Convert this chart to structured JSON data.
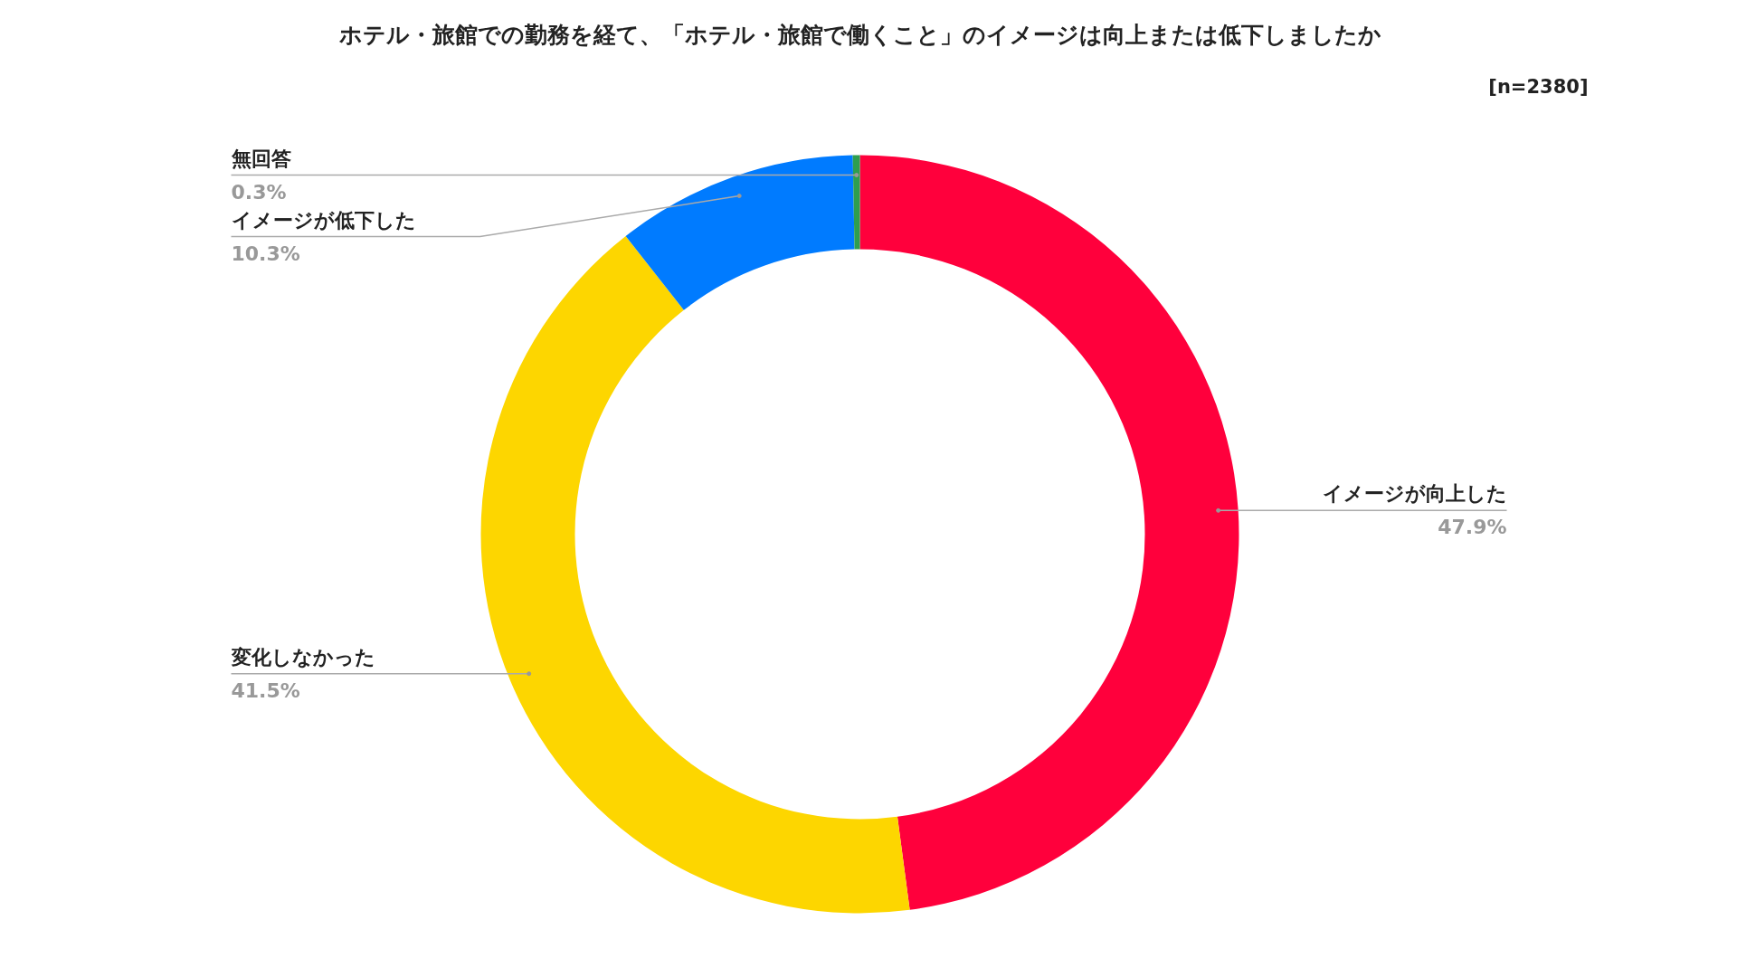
{
  "chart_data": {
    "type": "donut",
    "title": "ホテル・旅館での勤務を経て、「ホテル・旅館で働くこと」のイメージは向上または低下しましたか",
    "annotations": [
      "[n=2380]"
    ],
    "categories": [
      "イメージが向上した",
      "変化しなかった",
      "イメージが低下した",
      "無回答"
    ],
    "values": [
      47.9,
      41.5,
      10.3,
      0.3
    ],
    "colors": [
      "#ff003c",
      "#fdd600",
      "#007bff",
      "#2e9e4f"
    ],
    "value_labels": [
      "47.9%",
      "41.5%",
      "10.3%",
      "0.3%"
    ]
  }
}
